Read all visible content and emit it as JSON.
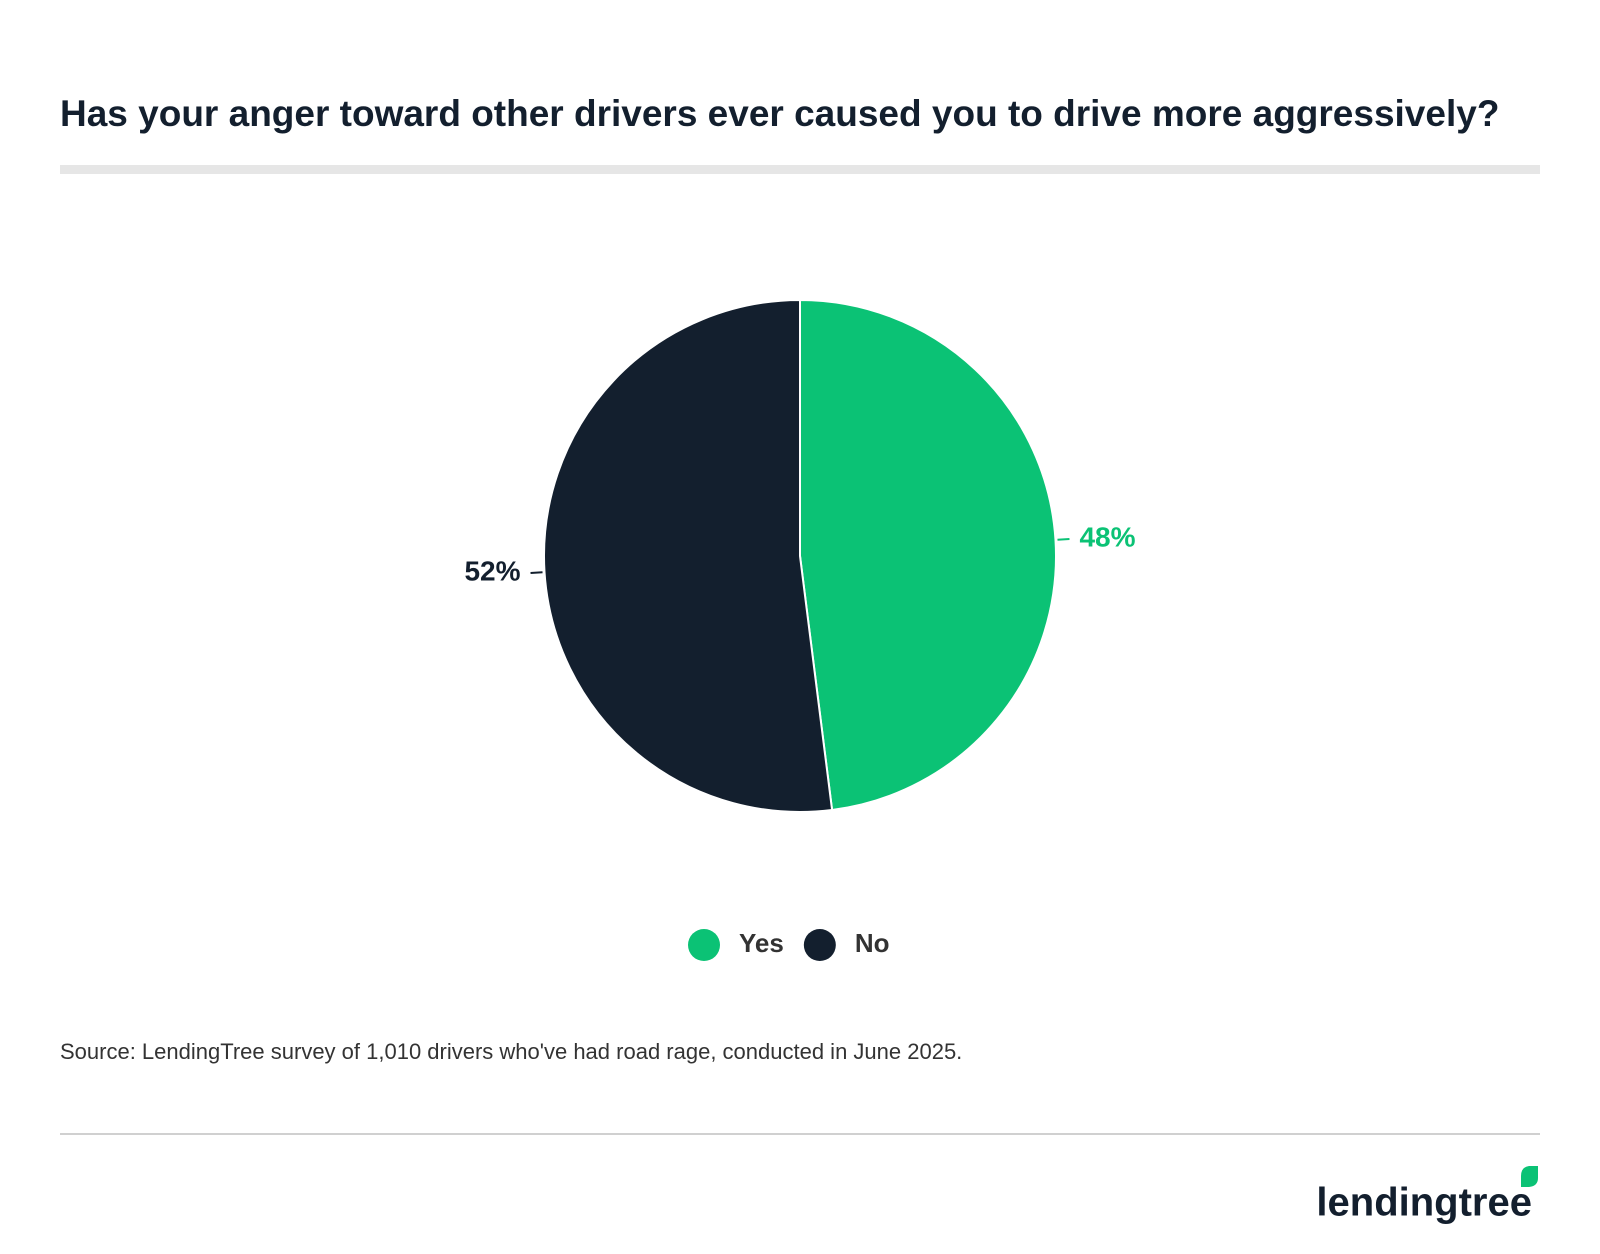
{
  "chart_data": {
    "type": "pie",
    "title": "Has your anger toward other drivers ever caused you to drive more aggressively?",
    "categories": [
      "Yes",
      "No"
    ],
    "values": [
      48,
      52
    ],
    "value_labels": [
      "48%",
      "52%"
    ],
    "colors": [
      "#0bc275",
      "#131f2e"
    ],
    "legend": "bottom"
  },
  "source": "Source: LendingTree survey of 1,010 drivers who've had road rage, conducted in June 2025.",
  "logo": "lendingtree"
}
